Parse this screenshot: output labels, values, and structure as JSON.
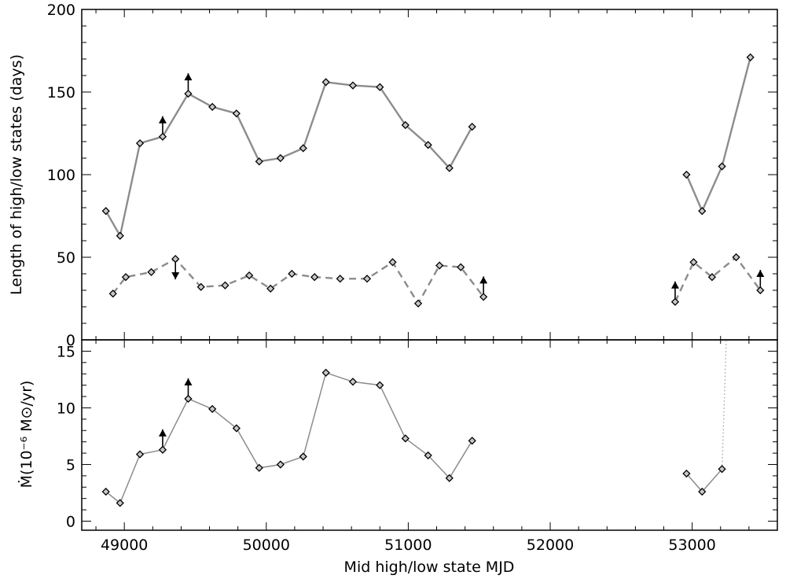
{
  "chart_data": [
    {
      "type": "line",
      "panel": "top",
      "ylabel": "Length of high/low states (days)",
      "xlim": [
        48700,
        53600
      ],
      "ylim": [
        0,
        200
      ],
      "y_ticks": [
        0,
        50,
        100,
        150,
        200
      ],
      "series": [
        {
          "line_style": "solid",
          "color": "#8c8c8c",
          "segments": [
            [
              [
                48870,
                78
              ],
              [
                48970,
                63
              ],
              [
                49110,
                119
              ],
              [
                49270,
                123
              ],
              [
                49450,
                149
              ],
              [
                49620,
                141
              ],
              [
                49790,
                137
              ],
              [
                49950,
                108
              ],
              [
                50100,
                110
              ],
              [
                50260,
                116
              ],
              [
                50420,
                156
              ],
              [
                50610,
                154
              ],
              [
                50800,
                153
              ],
              [
                50980,
                130
              ],
              [
                51140,
                118
              ],
              [
                51290,
                104
              ],
              [
                51450,
                129
              ]
            ],
            [
              [
                52960,
                100
              ],
              [
                53070,
                78
              ],
              [
                53210,
                105
              ],
              [
                53410,
                171
              ]
            ]
          ]
        },
        {
          "line_style": "dashed",
          "color": "#8c8c8c",
          "segments": [
            [
              [
                48920,
                28
              ],
              [
                49010,
                38
              ],
              [
                49190,
                41
              ],
              [
                49360,
                49
              ],
              [
                49540,
                32
              ],
              [
                49710,
                33
              ],
              [
                49880,
                39
              ],
              [
                50030,
                31
              ],
              [
                50180,
                40
              ],
              [
                50340,
                38
              ],
              [
                50520,
                37
              ],
              [
                50710,
                37
              ],
              [
                50890,
                47
              ],
              [
                51070,
                22
              ],
              [
                51220,
                45
              ],
              [
                51370,
                44
              ],
              [
                51530,
                26
              ]
            ],
            [
              [
                52880,
                23
              ],
              [
                53010,
                47
              ],
              [
                53140,
                38
              ],
              [
                53310,
                50
              ],
              [
                53480,
                30
              ]
            ]
          ]
        }
      ],
      "limit_arrows": [
        {
          "x": 49270,
          "y": 123,
          "direction": "up"
        },
        {
          "x": 49450,
          "y": 149,
          "direction": "up"
        },
        {
          "x": 49360,
          "y": 49,
          "direction": "down"
        },
        {
          "x": 51530,
          "y": 26,
          "direction": "up"
        },
        {
          "x": 52880,
          "y": 23,
          "direction": "up"
        },
        {
          "x": 53480,
          "y": 30,
          "direction": "up"
        }
      ]
    },
    {
      "type": "line",
      "panel": "bottom",
      "xlabel": "Mid high/low state MJD",
      "ylabel": "Ṁ(10⁻⁶ M⊙/yr)",
      "xlim": [
        48700,
        53600
      ],
      "ylim": [
        -0.8,
        16
      ],
      "x_ticks": [
        49000,
        50000,
        51000,
        52000,
        53000
      ],
      "y_ticks": [
        0,
        5,
        10,
        15
      ],
      "series": [
        {
          "line_style": "solid",
          "color": "#8c8c8c",
          "segments": [
            [
              [
                48870,
                2.6
              ],
              [
                48970,
                1.6
              ],
              [
                49110,
                5.9
              ],
              [
                49270,
                6.3
              ],
              [
                49450,
                10.8
              ],
              [
                49620,
                9.9
              ],
              [
                49790,
                8.2
              ],
              [
                49950,
                4.7
              ],
              [
                50100,
                5.0
              ],
              [
                50260,
                5.7
              ],
              [
                50420,
                13.1
              ],
              [
                50610,
                12.3
              ],
              [
                50800,
                12.0
              ],
              [
                50980,
                7.3
              ],
              [
                51140,
                5.8
              ],
              [
                51290,
                3.8
              ],
              [
                51450,
                7.1
              ]
            ],
            [
              [
                52960,
                4.2
              ],
              [
                53070,
                2.6
              ],
              [
                53210,
                4.6
              ]
            ]
          ]
        },
        {
          "line_style": "dotted",
          "color": "#a0a0a0",
          "segments": [
            [
              [
                53210,
                4.6
              ],
              [
                53240,
                16
              ]
            ]
          ]
        }
      ],
      "limit_arrows": [
        {
          "x": 49270,
          "y": 6.3,
          "direction": "up"
        },
        {
          "x": 49450,
          "y": 10.8,
          "direction": "up"
        }
      ]
    }
  ]
}
